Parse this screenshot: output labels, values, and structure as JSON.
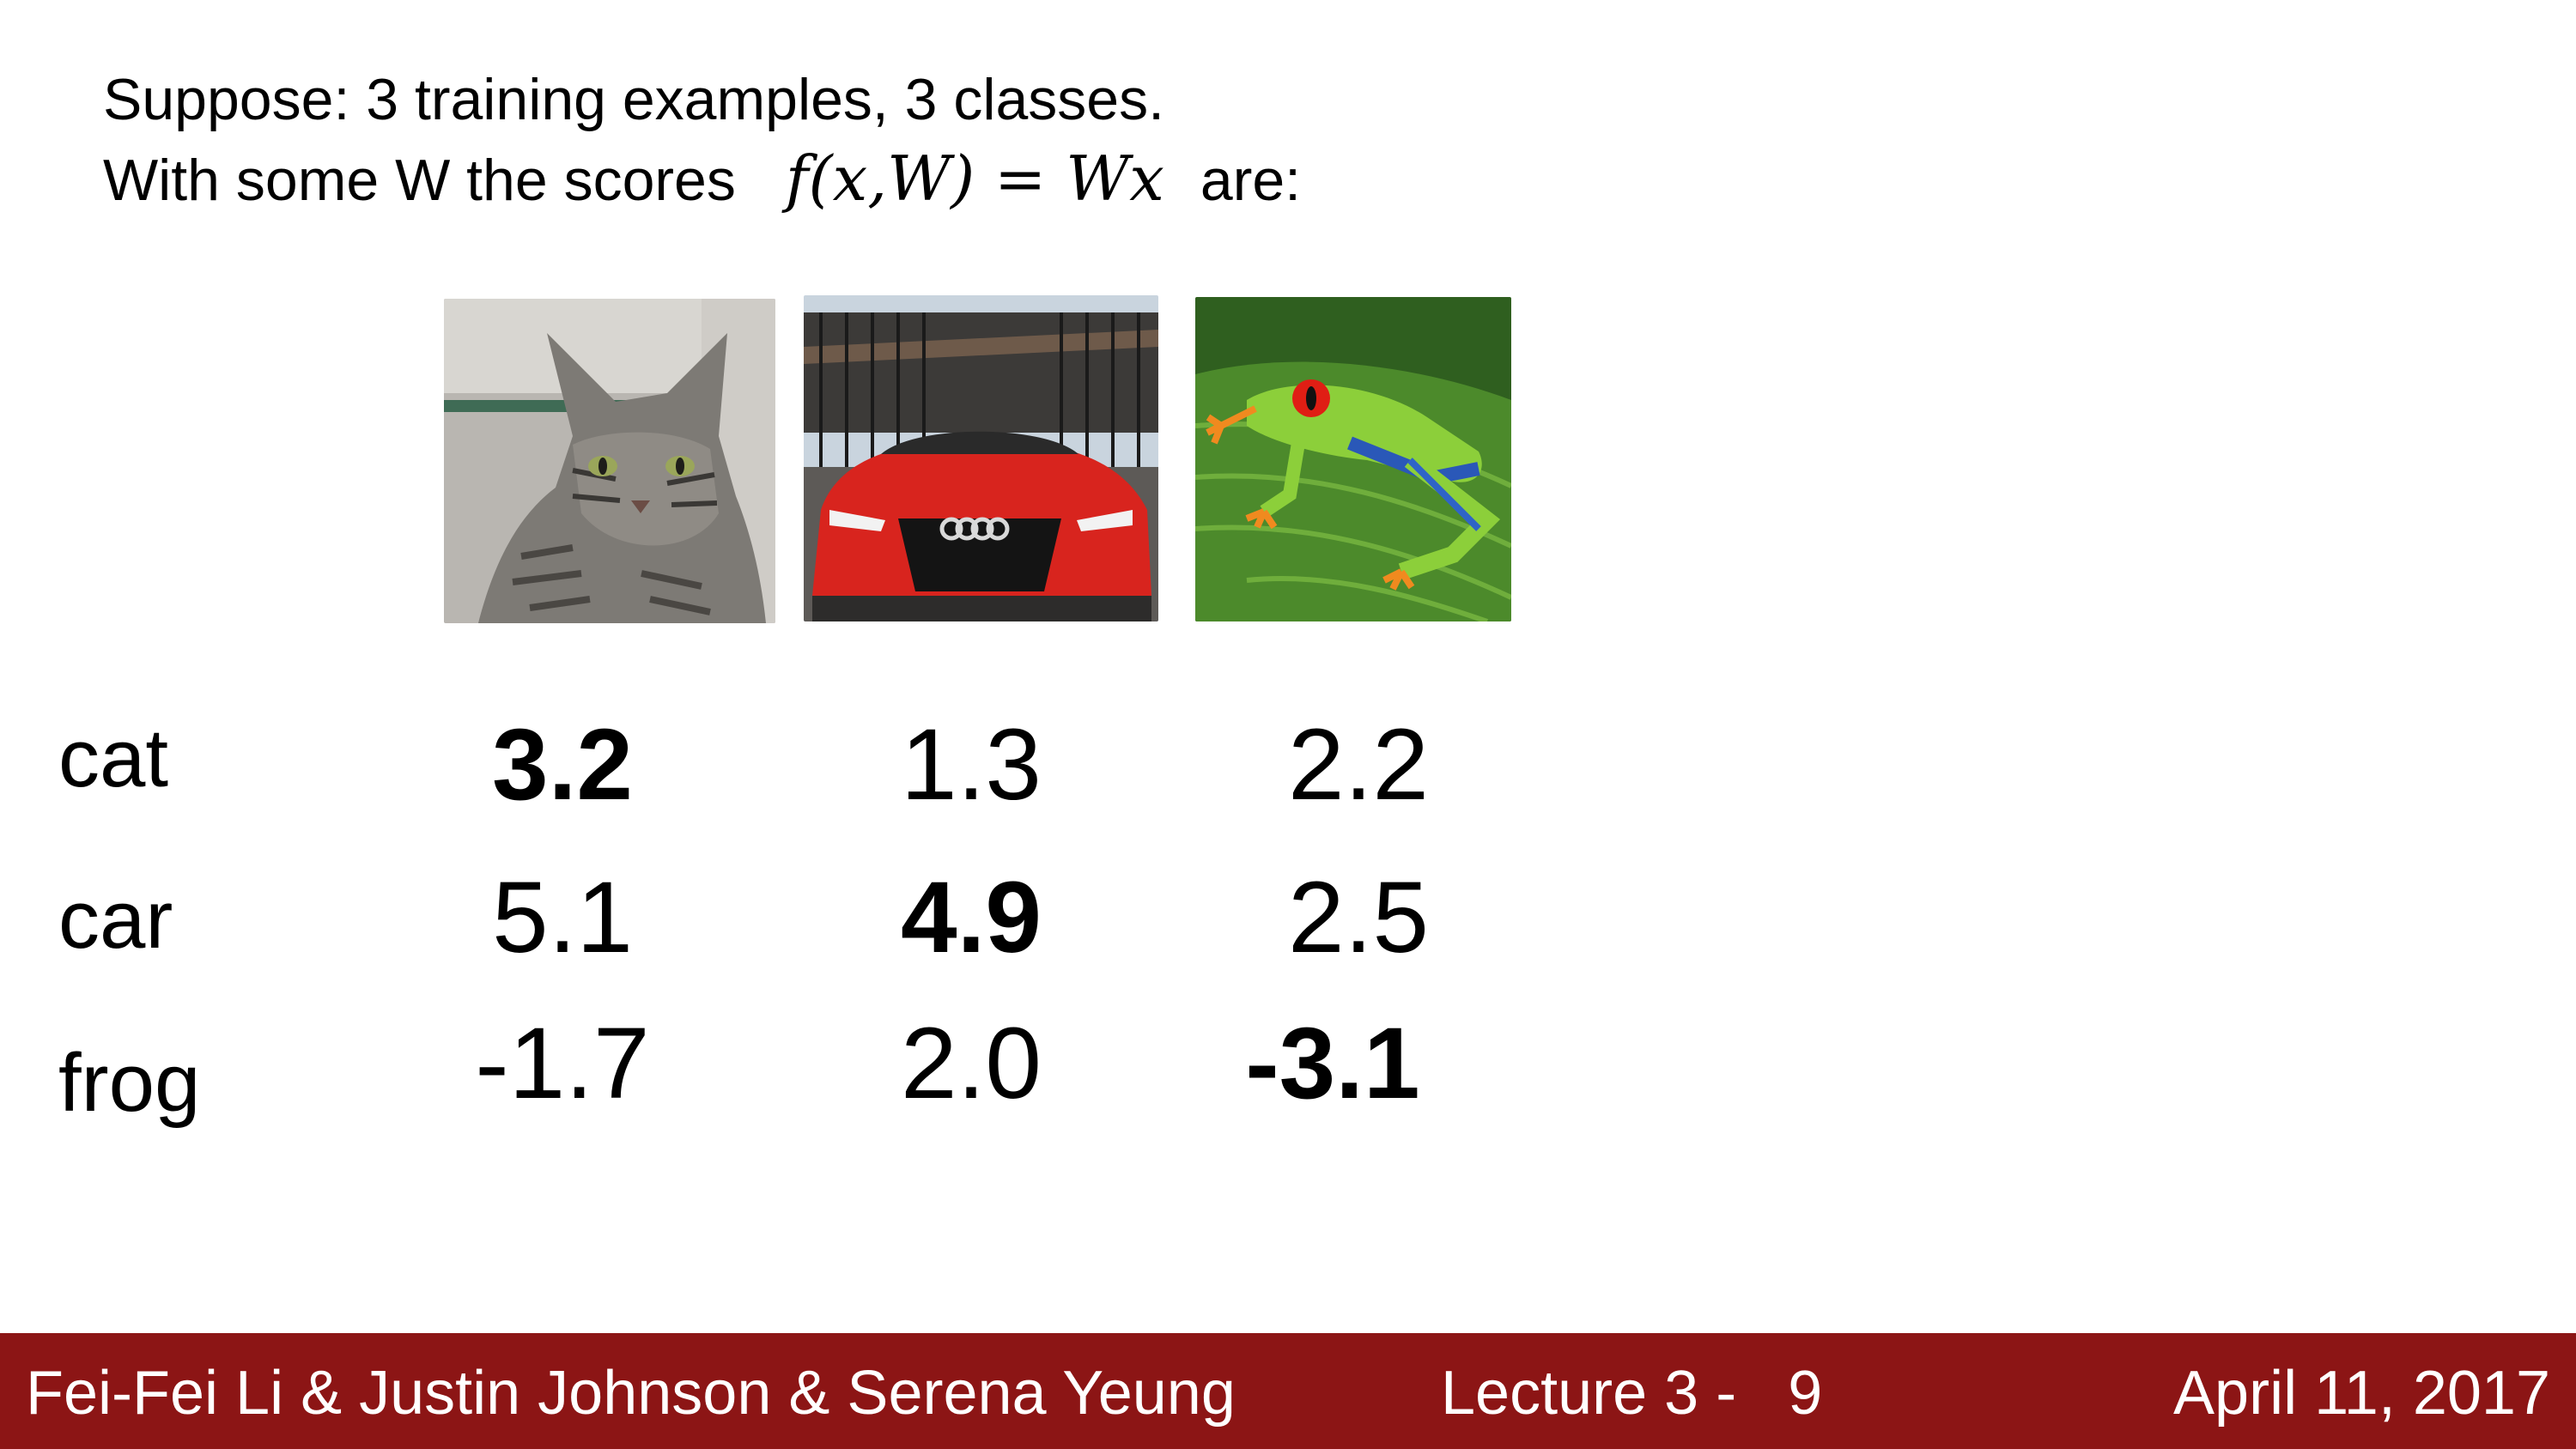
{
  "slide": {
    "line1": "Suppose: 3 training examples, 3 classes.",
    "line2_prefix": "With some W the scores",
    "formula": "f(x,W) = Wx",
    "line2_suffix": "are:"
  },
  "images": [
    {
      "subject": "cat"
    },
    {
      "subject": "car"
    },
    {
      "subject": "frog"
    }
  ],
  "classes": [
    "cat",
    "car",
    "frog"
  ],
  "scores": [
    [
      "3.2",
      "1.3",
      "2.2"
    ],
    [
      "5.1",
      "4.9",
      "2.5"
    ],
    [
      "-1.7",
      "2.0",
      "-3.1"
    ]
  ],
  "bold_cells": [
    [
      0,
      0
    ],
    [
      1,
      1
    ],
    [
      2,
      2
    ]
  ],
  "footer": {
    "authors": "Fei-Fei Li & Justin Johnson & Serena Yeung",
    "lecture": "Lecture 3 -   9",
    "date": "April 11, 2017",
    "background_color": "#8c1515"
  }
}
